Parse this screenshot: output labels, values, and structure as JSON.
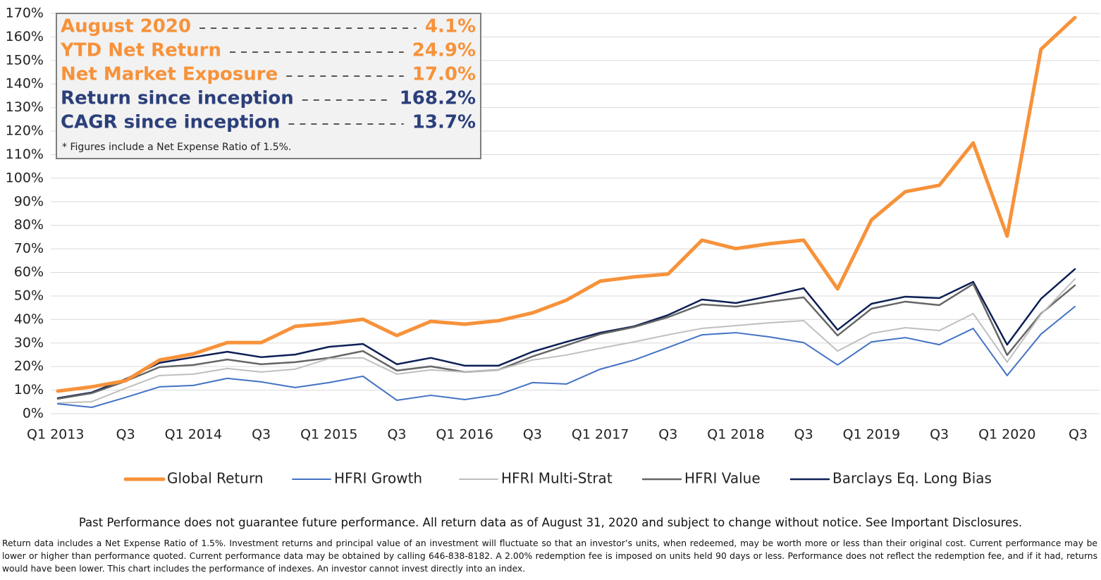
{
  "chart_data": {
    "type": "line",
    "categories": [
      "Q1 2013",
      null,
      "Q3",
      null,
      "Q1 2014",
      null,
      "Q3",
      null,
      "Q1 2015",
      null,
      "Q3",
      null,
      "Q1 2016",
      null,
      "Q3",
      null,
      "Q1 2017",
      null,
      "Q3",
      null,
      "Q1 2018",
      null,
      "Q3",
      null,
      "Q1 2019",
      null,
      "Q3",
      null,
      "Q1 2020",
      null,
      "Q3"
    ],
    "series": [
      {
        "name": "Global Return",
        "color": "#f7923a",
        "values": [
          9.6,
          11.4,
          14,
          22.8,
          25.4,
          30.2,
          30.2,
          37.1,
          38.3,
          40.1,
          33.2,
          39.2,
          38,
          39.5,
          42.8,
          48.2,
          56.3,
          58.1,
          59.3,
          73.7,
          70.1,
          72.2,
          73.7,
          53,
          82.3,
          94.3,
          97,
          115,
          75.4,
          154.8,
          168.2
        ]
      },
      {
        "name": "HFRI Growth",
        "color": "#4472c4",
        "values": [
          4.2,
          2.7,
          6.9,
          11.4,
          12,
          15,
          13.5,
          11.1,
          13.2,
          15.9,
          5.7,
          7.8,
          6,
          8.1,
          13.2,
          12.6,
          18.9,
          22.8,
          28.1,
          33.5,
          34.4,
          32.6,
          30.2,
          20.7,
          30.5,
          32.3,
          29.3,
          36.2,
          16.2,
          33.8,
          45.5
        ]
      },
      {
        "name": "HFRI Multi-Strat",
        "color": "#bfbfbf",
        "values": [
          4.5,
          5.1,
          10.8,
          16.2,
          16.8,
          19.2,
          17.7,
          18.9,
          23.4,
          23.7,
          16.8,
          18.6,
          17.7,
          18.6,
          22.8,
          24.9,
          27.8,
          30.5,
          33.5,
          36.2,
          37.4,
          38.6,
          39.5,
          26.6,
          34.1,
          36.5,
          35.3,
          42.5,
          21.9,
          42.2,
          57.2
        ]
      },
      {
        "name": "HFRI Value",
        "color": "#666666",
        "values": [
          6.3,
          8.7,
          13.8,
          19.8,
          20.7,
          23,
          21,
          21.9,
          23.7,
          26.6,
          18.3,
          20.1,
          17.7,
          18.6,
          24.3,
          29,
          33.8,
          36.8,
          41,
          46.4,
          45.5,
          47.6,
          49.4,
          33.2,
          44.6,
          47.6,
          46.1,
          55.1,
          24.9,
          42.5,
          54.5
        ]
      },
      {
        "name": "Barclays Eq. Long Bias",
        "color": "#0d1f55",
        "values": [
          6.6,
          9,
          14.7,
          21.6,
          24,
          26.3,
          24,
          25.1,
          28.4,
          29.6,
          21,
          23.7,
          20.4,
          20.4,
          26.3,
          30.5,
          34.4,
          37.1,
          41.9,
          48.5,
          47,
          50,
          53.3,
          35.6,
          46.7,
          49.7,
          49.1,
          56,
          29.3,
          48.8,
          61.4
        ]
      }
    ],
    "ylim": [
      0,
      170
    ],
    "yticks": [
      {
        "value": 0,
        "label": "0%"
      },
      {
        "value": 10,
        "label": "10%"
      },
      {
        "value": 20,
        "label": "20%"
      },
      {
        "value": 30,
        "label": "30%"
      },
      {
        "value": 40,
        "label": "40%"
      },
      {
        "value": 50,
        "label": "50%"
      },
      {
        "value": 60,
        "label": "60%"
      },
      {
        "value": 70,
        "label": "70%"
      },
      {
        "value": 80,
        "label": "80%"
      },
      {
        "value": 90,
        "label": "90%"
      },
      {
        "value": 100,
        "label": "100%"
      },
      {
        "value": 110,
        "label": "110%"
      },
      {
        "value": 120,
        "label": "120%"
      },
      {
        "value": 130,
        "label": "130%"
      },
      {
        "value": 140,
        "label": "140%"
      },
      {
        "value": 150,
        "label": "150%"
      },
      {
        "value": 160,
        "label": "160%"
      },
      {
        "value": 170,
        "label": "170%"
      }
    ],
    "grid": true,
    "legend": "bottom"
  },
  "summary_box": {
    "rows": [
      {
        "label": "August 2020",
        "value": "4.1%",
        "color": "#f7923a"
      },
      {
        "label": "YTD Net Return",
        "value": "24.9%",
        "color": "#f7923a"
      },
      {
        "label": "Net Market Exposure",
        "value": "17.0%",
        "color": "#f7923a"
      },
      {
        "label": "Return since inception",
        "value": "168.2%",
        "color": "#2b3f7a"
      },
      {
        "label": "CAGR since inception",
        "value": "13.7%",
        "color": "#2b3f7a"
      }
    ],
    "note": "* Figures include a Net Expense Ratio of 1.5%."
  },
  "footer": {
    "headline": "Past Performance does not guarantee future performance. All return data as of August 31, 2020 and subject to change without notice. See Important Disclosures.",
    "body": "Return data includes a Net Expense Ratio of 1.5%. Investment returns and principal value of an investment will fluctuate so that an investor’s units, when redeemed, may be worth more or less than their original cost. Current performance may be lower or higher than performance quoted. Current performance data may be obtained by calling 646-838-8182. A 2.00% redemption fee is imposed on units held 90 days or less. Performance does not reflect the redemption fee, and if it had, returns would have been lower. This chart includes the performance of indexes. An investor cannot invest directly into an index."
  }
}
